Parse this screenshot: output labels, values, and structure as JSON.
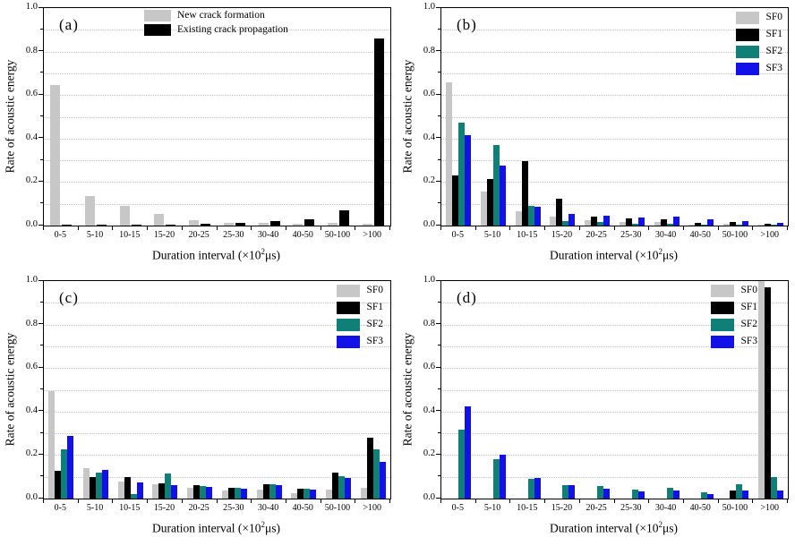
{
  "figure": {
    "ylabel": "Rate of acoustic energy",
    "xlabel_parts": {
      "pre": "Duration interval (×10",
      "sup": "2",
      "post": "μs)"
    },
    "y_tick_labels": [
      "0.0",
      "0.2",
      "0.4",
      "0.6",
      "0.8",
      "1.0"
    ]
  },
  "colors": {
    "gray": "#c7c7c7",
    "black": "#000000",
    "teal": "#0f7f78",
    "blue": "#1212e8",
    "gridline": "#c2c2c2"
  },
  "chart_data": {
    "type": "bar",
    "grouped": true,
    "grid": "dotted horizontal lines every 0.1",
    "ylabel": "Rate of acoustic energy",
    "xlabel": "Duration interval (×10²μs)",
    "ylim": [
      0,
      1.0
    ],
    "y_ticks": [
      0.0,
      0.2,
      0.4,
      0.6,
      0.8,
      1.0
    ],
    "categories": [
      "0-5",
      "5-10",
      "10-15",
      "15-20",
      "20-25",
      "25-30",
      "30-40",
      "40-50",
      "50-100",
      ">100"
    ],
    "panels": [
      {
        "label": "(a)",
        "legend_position": "top-center",
        "series": [
          {
            "name": "New crack formation",
            "color_key": "gray",
            "values": [
              0.645,
              0.135,
              0.092,
              0.055,
              0.025,
              0.013,
              0.014,
              0.008,
              0.013,
              0.01
            ]
          },
          {
            "name": "Existing crack propagation",
            "color_key": "black",
            "values": [
              0.002,
              0.002,
              0.003,
              0.005,
              0.01,
              0.012,
              0.022,
              0.03,
              0.07,
              0.86
            ]
          }
        ]
      },
      {
        "label": "(b)",
        "legend_position": "top-right",
        "series": [
          {
            "name": "SF0",
            "color_key": "gray",
            "values": [
              0.66,
              0.155,
              0.065,
              0.04,
              0.025,
              0.015,
              0.018,
              0.005,
              0.008,
              0.004
            ]
          },
          {
            "name": "SF1",
            "color_key": "black",
            "values": [
              0.232,
              0.212,
              0.295,
              0.125,
              0.042,
              0.033,
              0.03,
              0.014,
              0.016,
              0.008
            ]
          },
          {
            "name": "SF2",
            "color_key": "teal",
            "values": [
              0.472,
              0.37,
              0.09,
              0.022,
              0.015,
              0.01,
              0.01,
              0.005,
              0.006,
              0.003
            ]
          },
          {
            "name": "SF3",
            "color_key": "blue",
            "values": [
              0.415,
              0.275,
              0.085,
              0.053,
              0.044,
              0.036,
              0.042,
              0.028,
              0.02,
              0.013
            ]
          }
        ]
      },
      {
        "label": "(c)",
        "legend_position": "top-right",
        "series": [
          {
            "name": "SF0",
            "color_key": "gray",
            "values": [
              0.495,
              0.14,
              0.079,
              0.064,
              0.048,
              0.036,
              0.041,
              0.025,
              0.043,
              0.048
            ]
          },
          {
            "name": "SF1",
            "color_key": "black",
            "values": [
              0.127,
              0.098,
              0.099,
              0.072,
              0.062,
              0.05,
              0.066,
              0.045,
              0.119,
              0.28
            ]
          },
          {
            "name": "SF2",
            "color_key": "teal",
            "values": [
              0.225,
              0.12,
              0.021,
              0.116,
              0.059,
              0.048,
              0.064,
              0.045,
              0.102,
              0.228
            ]
          },
          {
            "name": "SF3",
            "color_key": "blue",
            "values": [
              0.287,
              0.132,
              0.076,
              0.061,
              0.055,
              0.047,
              0.062,
              0.041,
              0.095,
              0.168
            ]
          }
        ]
      },
      {
        "label": "(d)",
        "legend_position": "top-right",
        "series": [
          {
            "name": "SF0",
            "color_key": "gray",
            "values": [
              0,
              0,
              0,
              0,
              0,
              0,
              0,
              0,
              0,
              1.0
            ]
          },
          {
            "name": "SF1",
            "color_key": "black",
            "values": [
              0,
              0,
              0,
              0,
              0,
              0,
              0,
              0,
              0.035,
              0.97
            ]
          },
          {
            "name": "SF2",
            "color_key": "teal",
            "values": [
              0.315,
              0.18,
              0.092,
              0.062,
              0.056,
              0.043,
              0.051,
              0.03,
              0.065,
              0.098
            ]
          },
          {
            "name": "SF3",
            "color_key": "blue",
            "values": [
              0.425,
              0.203,
              0.096,
              0.06,
              0.046,
              0.034,
              0.037,
              0.022,
              0.039,
              0.038
            ]
          }
        ]
      }
    ]
  }
}
